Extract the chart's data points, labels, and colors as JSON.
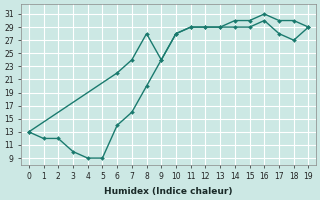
{
  "xlabel": "Humidex (Indice chaleur)",
  "bg_color": "#cce8e4",
  "grid_color": "#ffffff",
  "line_color": "#1a7a6e",
  "marker_color": "#1a7a6e",
  "upper_x": [
    0,
    6,
    7,
    8,
    9,
    10,
    11,
    12,
    13,
    14,
    15,
    16,
    17,
    18,
    19
  ],
  "upper_y": [
    13,
    22,
    24,
    28,
    24,
    28,
    29,
    29,
    29,
    30,
    30,
    31,
    30,
    30,
    29
  ],
  "lower_x": [
    0,
    1,
    2,
    3,
    4,
    5,
    6,
    7,
    8,
    9,
    10,
    11,
    12,
    13,
    14,
    15,
    16,
    17,
    18,
    19
  ],
  "lower_y": [
    13,
    12,
    12,
    10,
    9,
    9,
    14,
    16,
    20,
    24,
    28,
    29,
    29,
    29,
    29,
    29,
    30,
    28,
    27,
    29
  ],
  "xticks": [
    0,
    1,
    2,
    3,
    4,
    5,
    6,
    7,
    8,
    9,
    10,
    11,
    12,
    13,
    14,
    15,
    16,
    17,
    18,
    19
  ],
  "yticks": [
    9,
    11,
    13,
    15,
    17,
    19,
    21,
    23,
    25,
    27,
    29,
    31
  ],
  "xlim": [
    -0.5,
    19.5
  ],
  "ylim": [
    8.0,
    32.5
  ],
  "tick_fontsize": 5.5,
  "xlabel_fontsize": 6.5
}
